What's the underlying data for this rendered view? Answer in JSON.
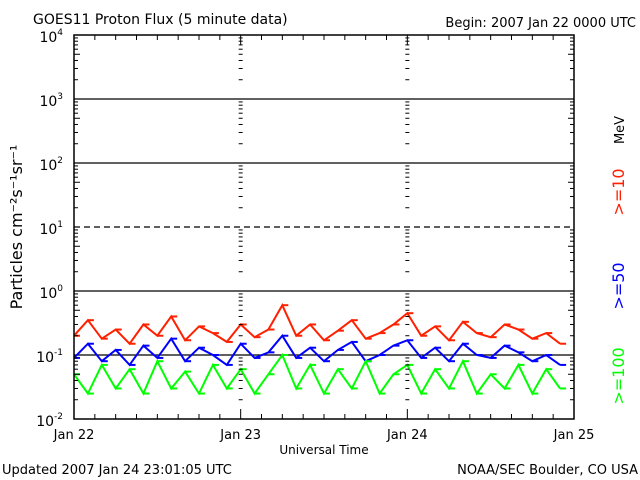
{
  "chart_data": {
    "type": "line",
    "title": "GOES11 Proton Flux (5 minute data)",
    "subtitle": "Begin: 2007 Jan 22 0000 UTC",
    "xlabel": "Universal Time",
    "ylabel": "Particles cm⁻²s⁻¹sr⁻¹",
    "y_scale": "log",
    "ylim": [
      0.01,
      10000
    ],
    "xlim": [
      "2007-01-22T00:00Z",
      "2007-01-25T00:00Z"
    ],
    "x_tick_labels": [
      "Jan 22",
      "Jan 23",
      "Jan 24",
      "Jan 25"
    ],
    "y_tick_labels": [
      {
        "base": "10",
        "exp": "4"
      },
      {
        "base": "10",
        "exp": "3"
      },
      {
        "base": "10",
        "exp": "2"
      },
      {
        "base": "10",
        "exp": "1"
      },
      {
        "base": "10",
        "exp": "0"
      },
      {
        "base": "10",
        "exp": "-1"
      },
      {
        "base": "10",
        "exp": "-2"
      }
    ],
    "unit_label": "MeV",
    "grid": true,
    "legend_placement": "right",
    "x": [
      "2007-01-22T00:00Z",
      "2007-01-22T02:00Z",
      "2007-01-22T04:00Z",
      "2007-01-22T06:00Z",
      "2007-01-22T08:00Z",
      "2007-01-22T10:00Z",
      "2007-01-22T12:00Z",
      "2007-01-22T14:00Z",
      "2007-01-22T16:00Z",
      "2007-01-22T18:00Z",
      "2007-01-22T20:00Z",
      "2007-01-22T22:00Z",
      "2007-01-23T00:00Z",
      "2007-01-23T02:00Z",
      "2007-01-23T04:00Z",
      "2007-01-23T06:00Z",
      "2007-01-23T08:00Z",
      "2007-01-23T10:00Z",
      "2007-01-23T12:00Z",
      "2007-01-23T14:00Z",
      "2007-01-23T16:00Z",
      "2007-01-23T18:00Z",
      "2007-01-23T20:00Z",
      "2007-01-23T22:00Z",
      "2007-01-24T00:00Z",
      "2007-01-24T02:00Z",
      "2007-01-24T04:00Z",
      "2007-01-24T06:00Z",
      "2007-01-24T08:00Z",
      "2007-01-24T10:00Z",
      "2007-01-24T12:00Z",
      "2007-01-24T14:00Z",
      "2007-01-24T16:00Z",
      "2007-01-24T18:00Z",
      "2007-01-24T20:00Z",
      "2007-01-24T22:00Z"
    ],
    "series": [
      {
        "name": ">=10",
        "color": "#ff2000",
        "values": [
          0.2,
          0.35,
          0.18,
          0.25,
          0.15,
          0.3,
          0.2,
          0.4,
          0.17,
          0.28,
          0.22,
          0.16,
          0.3,
          0.19,
          0.25,
          0.6,
          0.2,
          0.3,
          0.17,
          0.24,
          0.35,
          0.18,
          0.22,
          0.3,
          0.45,
          0.2,
          0.28,
          0.17,
          0.33,
          0.22,
          0.19,
          0.3,
          0.25,
          0.18,
          0.22,
          0.15
        ]
      },
      {
        "name": ">=50",
        "color": "#0000ff",
        "values": [
          0.09,
          0.15,
          0.08,
          0.12,
          0.07,
          0.14,
          0.09,
          0.18,
          0.08,
          0.13,
          0.1,
          0.07,
          0.15,
          0.09,
          0.11,
          0.2,
          0.09,
          0.13,
          0.08,
          0.12,
          0.16,
          0.08,
          0.1,
          0.14,
          0.17,
          0.09,
          0.13,
          0.08,
          0.15,
          0.1,
          0.09,
          0.14,
          0.11,
          0.08,
          0.1,
          0.07
        ]
      },
      {
        "name": ">=100",
        "color": "#00ff00",
        "values": [
          0.05,
          0.025,
          0.07,
          0.03,
          0.06,
          0.025,
          0.08,
          0.03,
          0.055,
          0.025,
          0.07,
          0.03,
          0.06,
          0.025,
          0.05,
          0.1,
          0.03,
          0.07,
          0.025,
          0.06,
          0.03,
          0.08,
          0.025,
          0.05,
          0.07,
          0.025,
          0.06,
          0.03,
          0.08,
          0.025,
          0.05,
          0.03,
          0.07,
          0.025,
          0.06,
          0.03
        ]
      }
    ]
  },
  "footer": {
    "updated": "Updated 2007 Jan 24 23:01:05 UTC",
    "credit": "NOAA/SEC Boulder, CO USA"
  }
}
